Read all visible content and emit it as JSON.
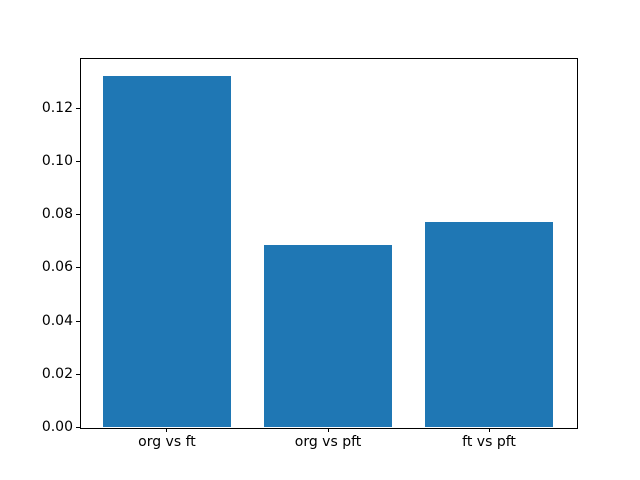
{
  "chart_data": {
    "type": "bar",
    "categories": [
      "org vs ft",
      "org vs pft",
      "ft vs pft"
    ],
    "x": [
      0,
      1,
      2
    ],
    "values": [
      0.132,
      0.0685,
      0.077
    ],
    "title": "",
    "xlabel": "",
    "ylabel": "",
    "xlim": [
      -0.54,
      2.54
    ],
    "ylim": [
      0,
      0.1386
    ],
    "yticks": [
      0,
      0.02,
      0.04,
      0.06,
      0.08,
      0.1,
      0.12
    ],
    "ytick_labels": [
      "0.00",
      "0.02",
      "0.04",
      "0.06",
      "0.08",
      "0.10",
      "0.12"
    ],
    "bar_width": 0.8,
    "bar_color": "#1f77b4",
    "grid": false,
    "legend": null,
    "background_color": "#ffffff",
    "spine_color": "#000000"
  }
}
